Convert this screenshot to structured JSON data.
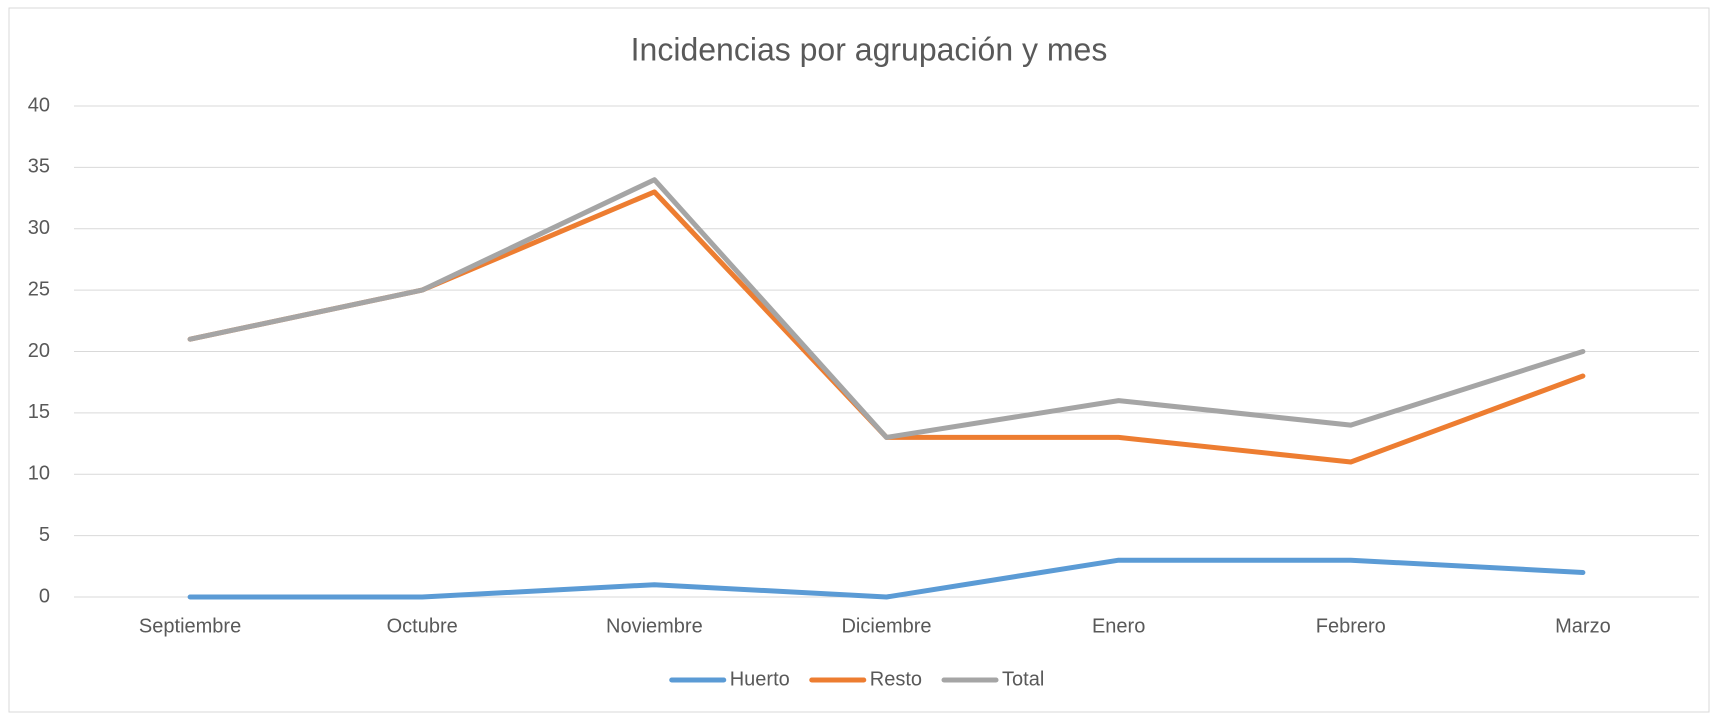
{
  "chart_data": {
    "type": "line",
    "title": "Incidencias por agrupación y mes",
    "categories": [
      "Septiembre",
      "Octubre",
      "Noviembre",
      "Diciembre",
      "Enero",
      "Febrero",
      "Marzo"
    ],
    "series": [
      {
        "name": "Huerto",
        "color": "#5b9bd5",
        "values": [
          0,
          0,
          1,
          0,
          3,
          3,
          2
        ]
      },
      {
        "name": "Resto",
        "color": "#ed7d31",
        "values": [
          21,
          25,
          33,
          13,
          13,
          11,
          18
        ]
      },
      {
        "name": "Total",
        "color": "#a5a5a5",
        "values": [
          21,
          25,
          34,
          13,
          16,
          14,
          20
        ]
      }
    ],
    "ylim": [
      0,
      40
    ],
    "yticks": [
      0,
      5,
      10,
      15,
      20,
      25,
      30,
      35,
      40
    ],
    "grid": true,
    "legend": "bottom"
  }
}
